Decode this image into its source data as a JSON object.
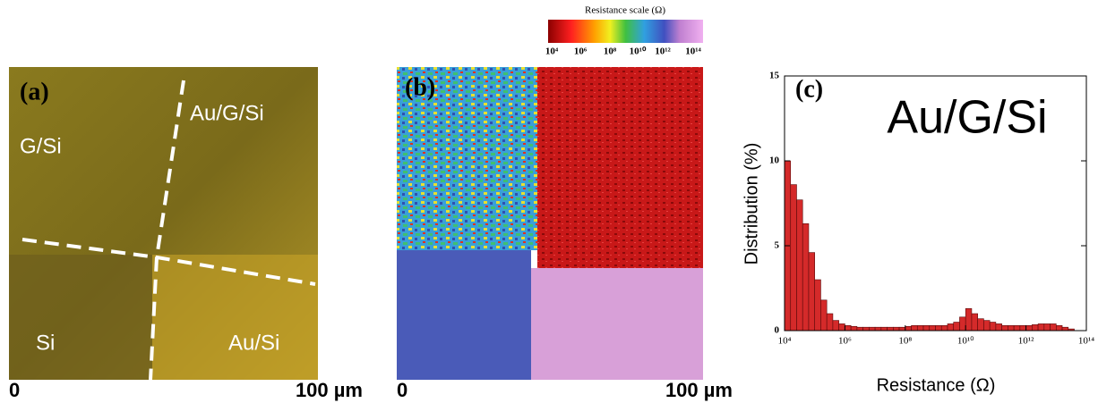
{
  "panel_a": {
    "label": "(a)",
    "regions": [
      "G/Si",
      "Au/G/Si",
      "Si",
      "Au/Si"
    ],
    "scale_start": "0",
    "scale_end": "100 µm"
  },
  "panel_b": {
    "label": "(b)",
    "scale_start": "0",
    "scale_end": "100 µm",
    "colorbar": {
      "title": "Resistance scale  (Ω)",
      "ticks": [
        "10⁴",
        "10⁶",
        "10⁸",
        "10¹⁰",
        "10¹²",
        "10¹⁴"
      ]
    }
  },
  "chart_data": {
    "type": "histogram",
    "panel_label": "(c)",
    "annotation": "Au/G/Si",
    "xlabel": "Resistance  (Ω)",
    "ylabel": "Distribution (%)",
    "log_x": true,
    "color": "#d42a2a",
    "xlim": [
      10000.0,
      100000000000000.0
    ],
    "xticks": [
      {
        "value": 10000.0,
        "label": "10⁴"
      },
      {
        "value": 1000000.0,
        "label": "10⁶"
      },
      {
        "value": 100000000.0,
        "label": "10⁸"
      },
      {
        "value": 10000000000.0,
        "label": "10¹⁰"
      },
      {
        "value": 1000000000000.0,
        "label": "10¹²"
      },
      {
        "value": 100000000000000.0,
        "label": "10¹⁴"
      }
    ],
    "ylim": [
      0,
      15
    ],
    "yticks": [
      0,
      5,
      10,
      15
    ],
    "bins": [
      10000.0,
      15849.0,
      25119.0,
      39811.0,
      63096.0,
      100000.0,
      158490.0,
      251190.0,
      398110.0,
      630960.0,
      1000000.0,
      1584900.0,
      2511900.0,
      3981100.0,
      6309600.0,
      10000000.0,
      15849000.0,
      25119000.0,
      39811000.0,
      63096000.0,
      100000000.0,
      158490000.0,
      251190000.0,
      398110000.0,
      630960000.0,
      1000000000.0,
      1584900000.0,
      2511900000.0,
      3981100000.0,
      6309600000.0,
      10000000000.0,
      15849000000.0,
      25119000000.0,
      39811000000.0,
      63096000000.0,
      100000000000.0,
      158490000000.0,
      251190000000.0,
      398110000000.0,
      630960000000.0,
      1000000000000.0,
      1584900000000.0,
      2511900000000.0,
      3981100000000.0,
      6309600000000.0,
      10000000000000.0,
      15849000000000.0,
      25119000000000.0,
      39811000000000.0
    ],
    "values": [
      10,
      8.6,
      7.7,
      6.3,
      4.6,
      3.0,
      1.8,
      1.0,
      0.6,
      0.4,
      0.3,
      0.25,
      0.2,
      0.2,
      0.2,
      0.2,
      0.2,
      0.2,
      0.2,
      0.2,
      0.25,
      0.3,
      0.3,
      0.3,
      0.3,
      0.3,
      0.3,
      0.4,
      0.5,
      0.8,
      1.3,
      1.0,
      0.7,
      0.6,
      0.5,
      0.4,
      0.3,
      0.3,
      0.3,
      0.3,
      0.3,
      0.35,
      0.4,
      0.4,
      0.4,
      0.3,
      0.2,
      0.1
    ]
  }
}
